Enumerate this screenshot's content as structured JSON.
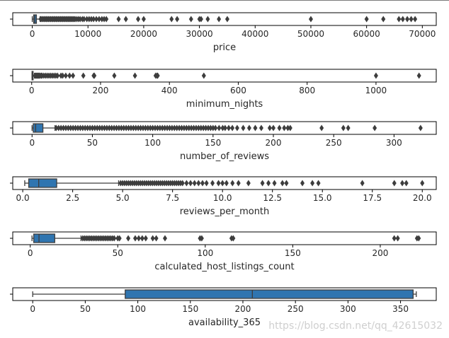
{
  "chart_data": [
    {
      "type": "box",
      "xlabel": "price",
      "xlim": [
        -3500,
        72500
      ],
      "ticks": [
        0,
        10000,
        20000,
        30000,
        40000,
        50000,
        60000,
        70000
      ],
      "tick_labels": [
        "0",
        "10000",
        "20000",
        "30000",
        "40000",
        "50000",
        "60000",
        "70000"
      ],
      "box": {
        "min": 0,
        "q1": 250,
        "median": 450,
        "q3": 750,
        "max": 1400
      },
      "outliers": [
        1500,
        1700,
        1900,
        2100,
        2300,
        2500,
        2700,
        2900,
        3100,
        3300,
        3500,
        3700,
        3900,
        4100,
        4300,
        4500,
        4700,
        4900,
        5100,
        5300,
        5500,
        5700,
        5900,
        6100,
        6300,
        6500,
        6700,
        6900,
        7100,
        7300,
        7500,
        7700,
        8000,
        8300,
        8600,
        9000,
        9300,
        9800,
        10200,
        10600,
        11000,
        11500,
        12000,
        12500,
        12900,
        13300,
        15500,
        16800,
        19000,
        20000,
        25000,
        26000,
        28500,
        30000,
        30300,
        31500,
        33500,
        35000,
        50000,
        60000,
        63000,
        65800,
        66500,
        67300,
        68000,
        68700
      ]
    },
    {
      "type": "box",
      "xlabel": "minimum_nights",
      "xlim": [
        -55,
        1175
      ],
      "ticks": [
        0,
        200,
        400,
        600,
        800,
        1000
      ],
      "tick_labels": [
        "0",
        "200",
        "400",
        "600",
        "800",
        "1000"
      ],
      "box": {
        "min": 1,
        "q1": 1,
        "median": 2,
        "q3": 4,
        "max": 8
      },
      "outliers": [
        10,
        12,
        14,
        16,
        18,
        20,
        22,
        25,
        28,
        30,
        35,
        40,
        45,
        50,
        55,
        60,
        65,
        70,
        75,
        85,
        90,
        99,
        110,
        120,
        150,
        180,
        182,
        240,
        300,
        360,
        364,
        366,
        500,
        1000,
        1125
      ]
    },
    {
      "type": "box",
      "xlabel": "number_of_reviews",
      "xlim": [
        -16,
        335
      ],
      "ticks": [
        0,
        50,
        100,
        150,
        200,
        250,
        300
      ],
      "tick_labels": [
        "0",
        "50",
        "100",
        "150",
        "200",
        "250",
        "300"
      ],
      "box": {
        "min": 0,
        "q1": 1,
        "median": 3,
        "q3": 9,
        "max": 19
      },
      "outliers": [
        20,
        22,
        24,
        26,
        28,
        30,
        32,
        34,
        36,
        38,
        40,
        42,
        44,
        46,
        48,
        50,
        52,
        54,
        56,
        58,
        60,
        62,
        64,
        66,
        68,
        70,
        72,
        74,
        76,
        78,
        80,
        82,
        84,
        86,
        88,
        90,
        92,
        94,
        96,
        98,
        100,
        102,
        104,
        106,
        108,
        110,
        112,
        114,
        116,
        118,
        120,
        122,
        124,
        126,
        128,
        130,
        132,
        134,
        136,
        138,
        140,
        142,
        144,
        146,
        148,
        150,
        152,
        155,
        158,
        160,
        163,
        166,
        170,
        175,
        180,
        185,
        190,
        197,
        200,
        205,
        209,
        212,
        214,
        240,
        258,
        262,
        284,
        322
      ]
    },
    {
      "type": "box",
      "xlabel": "reviews_per_month",
      "xlim": [
        -0.5,
        20.7
      ],
      "ticks": [
        0.0,
        2.5,
        5.0,
        7.5,
        10.0,
        12.5,
        15.0,
        17.5,
        20.0
      ],
      "tick_labels": [
        "0.0",
        "2.5",
        "5.0",
        "7.5",
        "10.0",
        "12.5",
        "15.0",
        "17.5",
        "20.0"
      ],
      "box": {
        "min": 0.1,
        "q1": 0.3,
        "median": 0.8,
        "q3": 1.7,
        "max": 4.8
      },
      "outliers": [
        4.9,
        5.0,
        5.1,
        5.2,
        5.3,
        5.4,
        5.5,
        5.6,
        5.7,
        5.8,
        5.9,
        6.0,
        6.1,
        6.2,
        6.3,
        6.4,
        6.5,
        6.6,
        6.7,
        6.8,
        6.9,
        7.0,
        7.1,
        7.2,
        7.3,
        7.4,
        7.5,
        7.6,
        7.7,
        7.8,
        7.9,
        8.0,
        8.2,
        8.4,
        8.6,
        8.8,
        9.0,
        9.2,
        9.5,
        9.8,
        10.0,
        10.2,
        10.5,
        10.8,
        11.3,
        12.0,
        12.3,
        12.6,
        13.0,
        13.2,
        14.0,
        14.5,
        14.8,
        17.0,
        18.6,
        19.0,
        19.2,
        20.0
      ]
    },
    {
      "type": "box",
      "xlabel": "calculated_host_listings_count",
      "xlim": [
        -10,
        232
      ],
      "ticks": [
        0,
        50,
        100,
        150,
        200
      ],
      "tick_labels": [
        "0",
        "50",
        "100",
        "150",
        "200"
      ],
      "box": {
        "min": 1,
        "q1": 2,
        "median": 5,
        "q3": 14,
        "max": 29
      },
      "outliers": [
        30,
        31,
        32,
        33,
        34,
        35,
        36,
        37,
        38,
        39,
        40,
        41,
        42,
        43,
        44,
        45,
        46,
        47,
        48,
        50,
        51,
        56,
        60,
        62,
        64,
        66,
        70,
        72,
        77,
        97,
        98,
        115,
        116,
        208,
        210,
        221,
        222
      ]
    },
    {
      "type": "box",
      "xlabel": "availability_365",
      "xlim": [
        -19,
        384
      ],
      "ticks": [
        0,
        50,
        100,
        150,
        200,
        250,
        300,
        350
      ],
      "tick_labels": [
        "0",
        "50",
        "100",
        "150",
        "200",
        "250",
        "300",
        "350"
      ],
      "box": {
        "min": 0,
        "q1": 88,
        "median": 209,
        "q3": 362,
        "max": 365
      },
      "outliers": []
    }
  ],
  "watermark": "https://blog.csdn.net/qq_42615032",
  "colors": {
    "box_fill": "#2f75b0",
    "line": "#3d3d3d",
    "frame": "#000000"
  }
}
